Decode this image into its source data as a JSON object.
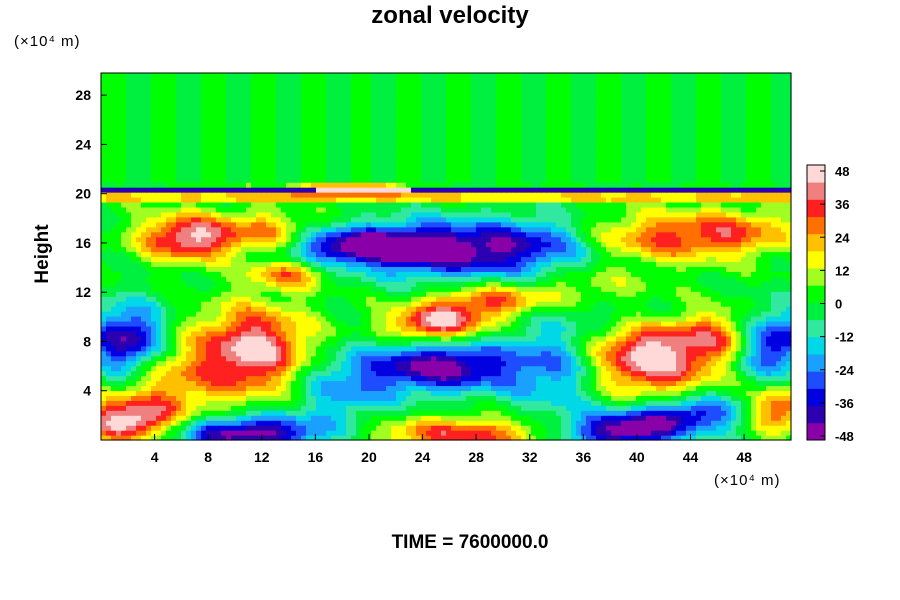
{
  "colors": {
    "colormap": [
      "#8a00a8",
      "#2a00b0",
      "#0000e0",
      "#1e4cff",
      "#1aa0ff",
      "#00d8e8",
      "#30e8a0",
      "#00f040",
      "#00ff00",
      "#a0ff20",
      "#ffff00",
      "#ffc000",
      "#ff7000",
      "#ff2020",
      "#f08080",
      "#ffd8d8"
    ],
    "background": "#ffffff",
    "upper_layer": "#00ff00"
  },
  "chart_data": {
    "type": "heatmap",
    "title": "zonal velocity",
    "xlabel": "",
    "ylabel": "Height",
    "x_unit": "(×10⁴ m)",
    "y_unit": "(×10⁴ m)",
    "xlim": [
      0,
      51.5
    ],
    "ylim": [
      0,
      29.8
    ],
    "x_ticks": [
      4,
      8,
      12,
      16,
      20,
      24,
      28,
      32,
      36,
      40,
      44,
      48
    ],
    "y_ticks": [
      4,
      8,
      12,
      16,
      20,
      24,
      28
    ],
    "colorbar": {
      "ticks": [
        48,
        36,
        24,
        12,
        0,
        -12,
        -24,
        -36,
        -48
      ],
      "range": [
        -50,
        50
      ]
    },
    "field_features": [
      {
        "x": 6.5,
        "y": 16.5,
        "value": 46,
        "sx": 2.5,
        "sy": 1.3
      },
      {
        "x": 12.5,
        "y": 16.8,
        "value": 28,
        "sx": 2.5,
        "sy": 1.2
      },
      {
        "x": 18.0,
        "y": 20.3,
        "value": 48,
        "sx": 3.5,
        "sy": 0.35
      },
      {
        "x": 19.0,
        "y": 15.8,
        "value": -40,
        "sx": 4.0,
        "sy": 1.0
      },
      {
        "x": 26.0,
        "y": 15.5,
        "value": -46,
        "sx": 5.0,
        "sy": 1.6
      },
      {
        "x": 33.0,
        "y": 16.0,
        "value": -18,
        "sx": 3.0,
        "sy": 1.5
      },
      {
        "x": 42.0,
        "y": 16.5,
        "value": 30,
        "sx": 4.0,
        "sy": 1.4
      },
      {
        "x": 48.0,
        "y": 17.0,
        "value": 22,
        "sx": 3.0,
        "sy": 1.3
      },
      {
        "x": 14.0,
        "y": 13.5,
        "value": 28,
        "sx": 2.0,
        "sy": 0.8
      },
      {
        "x": 29.0,
        "y": 11.3,
        "value": 32,
        "sx": 3.0,
        "sy": 0.9
      },
      {
        "x": 25.0,
        "y": 9.5,
        "value": 46,
        "sx": 2.5,
        "sy": 1.0
      },
      {
        "x": 2.0,
        "y": 8.0,
        "value": -50,
        "sx": 2.0,
        "sy": 2.0
      },
      {
        "x": 11.5,
        "y": 7.3,
        "value": 48,
        "sx": 2.8,
        "sy": 2.5
      },
      {
        "x": 5.0,
        "y": 5.0,
        "value": 24,
        "sx": 3.0,
        "sy": 2.5
      },
      {
        "x": 25.5,
        "y": 6.0,
        "value": -48,
        "sx": 4.0,
        "sy": 1.4
      },
      {
        "x": 18.0,
        "y": 4.0,
        "value": -20,
        "sx": 3.0,
        "sy": 2.0
      },
      {
        "x": 34.0,
        "y": 6.0,
        "value": -22,
        "sx": 2.5,
        "sy": 3.0
      },
      {
        "x": 41.0,
        "y": 6.8,
        "value": 50,
        "sx": 3.2,
        "sy": 2.2
      },
      {
        "x": 47.0,
        "y": 8.5,
        "value": 30,
        "sx": 2.5,
        "sy": 1.5
      },
      {
        "x": 50.0,
        "y": 8.0,
        "value": -50,
        "sx": 2.0,
        "sy": 1.8
      },
      {
        "x": 2.0,
        "y": 1.6,
        "value": 48,
        "sx": 2.5,
        "sy": 1.2
      },
      {
        "x": 11.0,
        "y": 0.6,
        "value": -50,
        "sx": 4.0,
        "sy": 1.0
      },
      {
        "x": 27.0,
        "y": 0.5,
        "value": 34,
        "sx": 5.0,
        "sy": 1.0
      },
      {
        "x": 39.0,
        "y": 0.8,
        "value": -50,
        "sx": 3.0,
        "sy": 1.0
      },
      {
        "x": 44.0,
        "y": 2.2,
        "value": -36,
        "sx": 3.0,
        "sy": 1.0
      },
      {
        "x": 50.5,
        "y": 2.5,
        "value": 38,
        "sx": 1.5,
        "sy": 1.2
      },
      {
        "x": 36.0,
        "y": 12.5,
        "value": 12,
        "sx": 3.0,
        "sy": 1.0
      },
      {
        "x": 40.0,
        "y": 10.0,
        "value": -12,
        "sx": 3.0,
        "sy": 1.0
      }
    ],
    "annotations": [
      "TIME = 7600000.0"
    ]
  },
  "footer": {
    "time_label": "TIME = 7600000.0"
  },
  "units": {
    "y": "(×10⁴ m)",
    "x": "(×10⁴ m)"
  }
}
